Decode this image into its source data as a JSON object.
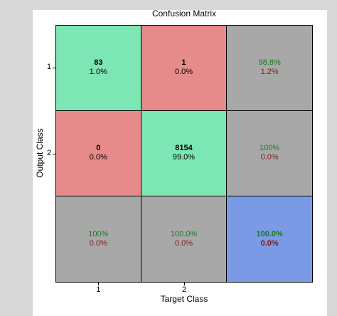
{
  "chart_data": {
    "type": "heatmap",
    "title": "Confusion Matrix",
    "xlabel": "Target Class",
    "ylabel": "Output Class",
    "x_ticks": [
      "1",
      "2"
    ],
    "y_ticks": [
      "1",
      "2"
    ],
    "matrix": [
      [
        83,
        1
      ],
      [
        0,
        8154
      ]
    ],
    "matrix_pct": [
      [
        "1.0%",
        "0.0%"
      ],
      [
        "0.0%",
        "99.0%"
      ]
    ],
    "row_summary": [
      [
        "98.8%",
        "1.2%"
      ],
      [
        "100%",
        "0.0%"
      ]
    ],
    "col_summary": [
      [
        "100%",
        "0.0%"
      ],
      [
        "100.0%",
        "0.0%"
      ]
    ],
    "overall": [
      "100.0%",
      "0.0%"
    ],
    "colors": {
      "correct": "#7ce6b4",
      "wrong": "#e68a8a",
      "summary": "#a8a8a8",
      "overall": "#7a9ae6"
    }
  }
}
